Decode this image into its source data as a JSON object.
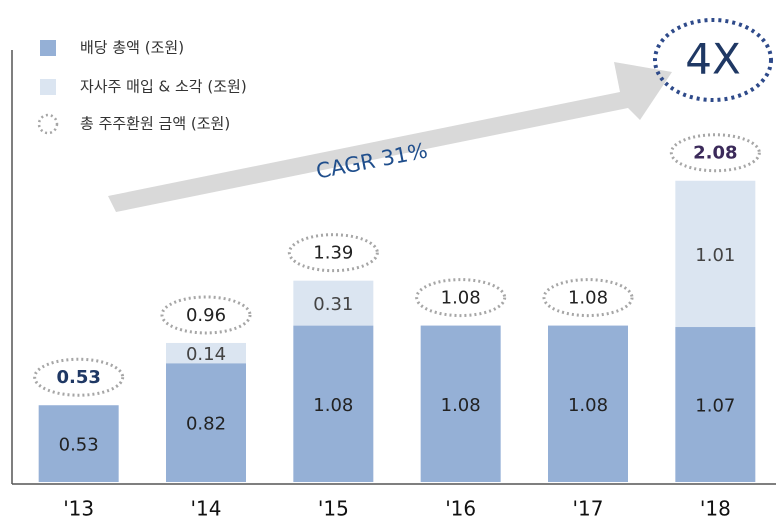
{
  "chart_data": {
    "type": "bar",
    "stacked": true,
    "categories": [
      "'13",
      "'14",
      "'15",
      "'16",
      "'17",
      "'18"
    ],
    "series": [
      {
        "name": "배당 총액 (조원)",
        "color": "#95b0d6",
        "values": [
          0.53,
          0.82,
          1.08,
          1.08,
          1.08,
          1.07
        ]
      },
      {
        "name": "자사주 매입 & 소각 (조원)",
        "color": "#dbe5f1",
        "values": [
          null,
          0.14,
          0.31,
          null,
          null,
          1.01
        ]
      }
    ],
    "totals": {
      "name": "총 주주환원 금액 (조원)",
      "color": "#a6a6a6",
      "values": [
        0.53,
        0.96,
        1.39,
        1.08,
        1.08,
        2.08
      ],
      "label_colors": [
        "#1f3864",
        "#222222",
        "#222222",
        "#222222",
        "#222222",
        "#3b2a5a"
      ]
    },
    "ylim": [
      0,
      3.1
    ],
    "annotations": {
      "cagr": "CAGR 31%",
      "multiple": "4X"
    }
  }
}
